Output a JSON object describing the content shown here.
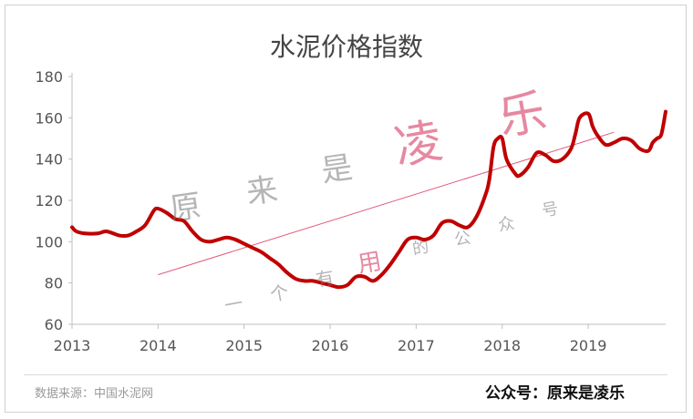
{
  "title": "水泥价格指数",
  "footer": {
    "source": "数据来源：中国水泥网",
    "account": "公众号：原来是凌乐"
  },
  "watermark": {
    "brand": [
      "原",
      "来",
      "是",
      "凌",
      "乐"
    ],
    "slogan": [
      "一",
      "个",
      "有",
      "用",
      "的",
      "公",
      "众",
      "号"
    ]
  },
  "colors": {
    "series": "#c00000",
    "trend": "#e05a7a",
    "axis": "#bfbfbf",
    "brand_pink": "#e06b8a"
  },
  "chart_data": {
    "type": "line",
    "title": "水泥价格指数",
    "xlabel": "",
    "ylabel": "",
    "xlim": [
      2013.0,
      2019.9
    ],
    "ylim": [
      60,
      180
    ],
    "yticks": [
      60,
      80,
      100,
      120,
      140,
      160,
      180
    ],
    "xticks": [
      2013,
      2014,
      2015,
      2016,
      2017,
      2018,
      2019
    ],
    "grid": false,
    "legend": "none",
    "series": [
      {
        "values": [
          [
            2013.0,
            107
          ],
          [
            2013.05,
            105
          ],
          [
            2013.15,
            104
          ],
          [
            2013.3,
            104
          ],
          [
            2013.4,
            105
          ],
          [
            2013.55,
            103
          ],
          [
            2013.65,
            103
          ],
          [
            2013.75,
            105
          ],
          [
            2013.85,
            108
          ],
          [
            2013.95,
            115
          ],
          [
            2014.0,
            116
          ],
          [
            2014.1,
            114
          ],
          [
            2014.2,
            111
          ],
          [
            2014.3,
            110
          ],
          [
            2014.4,
            105
          ],
          [
            2014.5,
            101
          ],
          [
            2014.6,
            100
          ],
          [
            2014.7,
            101
          ],
          [
            2014.8,
            102
          ],
          [
            2014.9,
            101
          ],
          [
            2015.0,
            99
          ],
          [
            2015.1,
            97
          ],
          [
            2015.2,
            95
          ],
          [
            2015.3,
            92
          ],
          [
            2015.4,
            89
          ],
          [
            2015.5,
            85
          ],
          [
            2015.6,
            82
          ],
          [
            2015.7,
            81
          ],
          [
            2015.8,
            81
          ],
          [
            2015.9,
            80
          ],
          [
            2016.0,
            79
          ],
          [
            2016.1,
            78
          ],
          [
            2016.2,
            79
          ],
          [
            2016.3,
            83
          ],
          [
            2016.4,
            83
          ],
          [
            2016.5,
            81
          ],
          [
            2016.6,
            84
          ],
          [
            2016.7,
            89
          ],
          [
            2016.8,
            95
          ],
          [
            2016.9,
            101
          ],
          [
            2017.0,
            102
          ],
          [
            2017.1,
            101
          ],
          [
            2017.2,
            103
          ],
          [
            2017.3,
            109
          ],
          [
            2017.4,
            110
          ],
          [
            2017.5,
            108
          ],
          [
            2017.6,
            107
          ],
          [
            2017.7,
            112
          ],
          [
            2017.8,
            122
          ],
          [
            2017.85,
            130
          ],
          [
            2017.9,
            146
          ],
          [
            2017.95,
            150
          ],
          [
            2018.0,
            150
          ],
          [
            2018.05,
            140
          ],
          [
            2018.15,
            133
          ],
          [
            2018.2,
            132
          ],
          [
            2018.3,
            136
          ],
          [
            2018.4,
            143
          ],
          [
            2018.5,
            142
          ],
          [
            2018.6,
            139
          ],
          [
            2018.7,
            140
          ],
          [
            2018.8,
            145
          ],
          [
            2018.85,
            152
          ],
          [
            2018.9,
            160
          ],
          [
            2019.0,
            162
          ],
          [
            2019.05,
            156
          ],
          [
            2019.1,
            152
          ],
          [
            2019.2,
            147
          ],
          [
            2019.3,
            148
          ],
          [
            2019.4,
            150
          ],
          [
            2019.5,
            149
          ],
          [
            2019.6,
            145
          ],
          [
            2019.7,
            144
          ],
          [
            2019.75,
            148
          ],
          [
            2019.8,
            150
          ],
          [
            2019.85,
            152
          ],
          [
            2019.9,
            163
          ]
        ]
      },
      {
        "type": "trendline",
        "values": [
          [
            2014.0,
            84
          ],
          [
            2019.3,
            153
          ]
        ]
      }
    ]
  }
}
